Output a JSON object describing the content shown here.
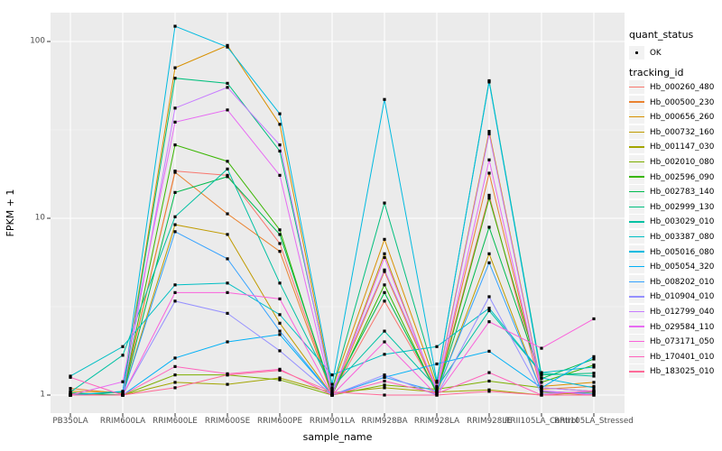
{
  "legend": {
    "quant_status_title": "quant_status",
    "quant_status_value": "OK",
    "tracking_title": "tracking_id"
  },
  "colors": {
    "panel_bg": "#ebebeb",
    "grid_major": "#ffffff",
    "grid_minor": "#f5f5f5",
    "tick_mark": "#333333",
    "tick_label": "#4d4d4d",
    "legend_key_bg": "#f2f2f2",
    "marker": "#000000"
  },
  "chart_data": {
    "type": "line",
    "title": "",
    "xlabel": "sample_name",
    "ylabel": "FPKM + 1",
    "y_scale": "log10",
    "ylim": [
      0.95,
      135
    ],
    "y_major_ticks": [
      1,
      10,
      100
    ],
    "y_tick_labels": [
      "1",
      "10",
      "100"
    ],
    "legend_position": "right",
    "point_marker": "small black square (quant_status OK)",
    "grid": true,
    "categories": [
      "PB350LA",
      "RRIM600LA",
      "RRIM600LE",
      "RRIM600SE",
      "RRIM600PE",
      "RRIM901LA",
      "RRIM928BA",
      "RRIM928LA",
      "RRIM928LE",
      "RRII105LA_Control",
      "RRII105LA_Stressed"
    ],
    "series": [
      {
        "name": "Hb_000260_480",
        "color": "#F8766D",
        "values": [
          1.02,
          1.0,
          18.5,
          17.5,
          7.2,
          1.02,
          3.4,
          1.05,
          13.5,
          1.05,
          1.02
        ]
      },
      {
        "name": "Hb_000500_230",
        "color": "#EA8331",
        "values": [
          1.09,
          1.02,
          18.2,
          10.6,
          6.5,
          1.0,
          5.0,
          1.05,
          18.0,
          1.08,
          1.12
        ]
      },
      {
        "name": "Hb_000656_260",
        "color": "#D89000",
        "values": [
          1.05,
          1.04,
          71,
          95,
          34,
          1.08,
          7.6,
          1.12,
          31,
          1.12,
          1.18
        ]
      },
      {
        "name": "Hb_000732_160",
        "color": "#C09B00",
        "values": [
          1.0,
          1.0,
          9.2,
          8.1,
          2.55,
          1.0,
          6.3,
          1.02,
          6.3,
          1.04,
          1.0
        ]
      },
      {
        "name": "Hb_001147_030",
        "color": "#A3A500",
        "values": [
          1.0,
          1.0,
          1.18,
          1.15,
          1.25,
          1.03,
          1.1,
          1.04,
          1.07,
          1.0,
          1.04
        ]
      },
      {
        "name": "Hb_002010_080",
        "color": "#7CAE00",
        "values": [
          1.0,
          1.0,
          1.3,
          1.3,
          1.22,
          1.0,
          1.14,
          1.08,
          1.2,
          1.1,
          1.05
        ]
      },
      {
        "name": "Hb_002596_090",
        "color": "#39B600",
        "values": [
          1.0,
          1.0,
          26,
          21,
          8.6,
          1.0,
          4.2,
          1.02,
          13.0,
          1.18,
          1.48
        ]
      },
      {
        "name": "Hb_002783_140",
        "color": "#00BB4E",
        "values": [
          1.03,
          1.0,
          14,
          17.2,
          8.1,
          1.04,
          3.8,
          1.04,
          8.9,
          1.24,
          1.6
        ]
      },
      {
        "name": "Hb_002999_130",
        "color": "#00BF7D",
        "values": [
          1.0,
          1.04,
          62,
          58,
          24,
          1.08,
          12.2,
          1.18,
          60,
          1.3,
          1.33
        ]
      },
      {
        "name": "Hb_003029_010",
        "color": "#00C1A3",
        "values": [
          1.04,
          1.68,
          10.2,
          19,
          4.3,
          1.1,
          2.3,
          1.1,
          3.0,
          1.33,
          1.28
        ]
      },
      {
        "name": "Hb_003387_080",
        "color": "#00BFC4",
        "values": [
          1.28,
          1.88,
          4.2,
          4.3,
          2.85,
          1.3,
          1.7,
          1.88,
          3.1,
          1.34,
          1.44
        ]
      },
      {
        "name": "Hb_005016_080",
        "color": "#00BAE0",
        "values": [
          1.0,
          1.05,
          122,
          93,
          39,
          1.15,
          47,
          1.2,
          59,
          1.25,
          1.1
        ]
      },
      {
        "name": "Hb_005054_320",
        "color": "#00B0F6",
        "values": [
          1.0,
          1.0,
          1.62,
          2.0,
          2.2,
          1.0,
          1.26,
          1.5,
          1.77,
          1.1,
          1.65
        ]
      },
      {
        "name": "Hb_008202_010",
        "color": "#35A2FF",
        "values": [
          1.0,
          1.0,
          8.4,
          5.9,
          2.3,
          1.0,
          1.26,
          1.05,
          5.6,
          1.05,
          1.02
        ]
      },
      {
        "name": "Hb_010904_010",
        "color": "#9590FF",
        "values": [
          1.0,
          1.0,
          3.4,
          2.9,
          1.78,
          1.0,
          1.3,
          1.0,
          3.6,
          1.02,
          1.05
        ]
      },
      {
        "name": "Hb_012799_040",
        "color": "#C77CFF",
        "values": [
          1.0,
          1.0,
          42,
          55,
          26,
          1.05,
          5.1,
          1.1,
          30,
          1.1,
          1.05
        ]
      },
      {
        "name": "Hb_029584_110",
        "color": "#E76BF3",
        "values": [
          1.0,
          1.19,
          35,
          41,
          17.5,
          1.0,
          6.0,
          1.05,
          21.4,
          1.06,
          1.0
        ]
      },
      {
        "name": "Hb_073171_050",
        "color": "#FA62DB",
        "values": [
          1.0,
          1.0,
          3.8,
          3.8,
          3.5,
          1.0,
          2.0,
          1.0,
          2.6,
          1.84,
          2.7
        ]
      },
      {
        "name": "Hb_170401_010",
        "color": "#FF62BC",
        "values": [
          1.26,
          1.0,
          1.45,
          1.32,
          1.4,
          1.0,
          1.2,
          1.02,
          1.34,
          1.0,
          1.06
        ]
      },
      {
        "name": "Hb_183025_010",
        "color": "#FF6A98",
        "values": [
          1.0,
          1.0,
          1.1,
          1.3,
          1.38,
          1.04,
          1.0,
          1.0,
          1.05,
          1.0,
          1.0
        ]
      }
    ]
  }
}
